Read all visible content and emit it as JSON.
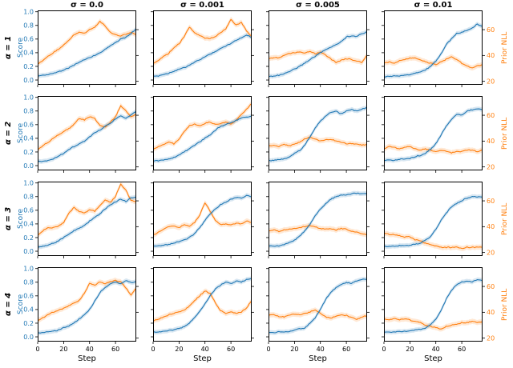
{
  "chart_data": {
    "type": "line",
    "layout": "4x4 grid of subplots; columns share sigma titles, rows share alpha labels; left blue axis = Score (labeled on first column), right orange axis = Prior NLL (labeled on last column); x tick labels and Step label only on bottom row",
    "columns": [
      {
        "title": "σ = 0.0"
      },
      {
        "title": "σ = 0.001"
      },
      {
        "title": "σ = 0.005"
      },
      {
        "title": "σ = 0.01"
      }
    ],
    "rows": [
      {
        "label": "α = 1"
      },
      {
        "label": "α = 2"
      },
      {
        "label": "α = 3"
      },
      {
        "label": "α = 4"
      }
    ],
    "x_axis": {
      "label": "Step",
      "ticks": [
        "0",
        "20",
        "40",
        "60"
      ],
      "lim": [
        0,
        76
      ]
    },
    "score_axis": {
      "label": "Score",
      "color": "#1f77b4",
      "ticks": [
        "0.0",
        "0.2",
        "0.4",
        "0.6",
        "0.8",
        "1.0"
      ],
      "lim": [
        -0.07,
        1.02
      ]
    },
    "nll_axis": {
      "label": "Prior NLL",
      "color": "#ff7f0e",
      "ticks": [
        "20",
        "40",
        "60"
      ],
      "lim": [
        17.3,
        74.9
      ]
    },
    "series_colors": {
      "score": "#1f77b4",
      "nll": "#ff7f0e"
    },
    "x": [
      0,
      4,
      8,
      12,
      16,
      20,
      24,
      28,
      32,
      36,
      40,
      44,
      48,
      52,
      56,
      60,
      64,
      68,
      72,
      76
    ],
    "subplots": [
      {
        "row": 0,
        "col": 0,
        "score": [
          0.06,
          0.07,
          0.08,
          0.1,
          0.12,
          0.15,
          0.18,
          0.22,
          0.26,
          0.3,
          0.33,
          0.36,
          0.4,
          0.45,
          0.5,
          0.55,
          0.6,
          0.63,
          0.68,
          0.75
        ],
        "nll": [
          33.4,
          36.3,
          39.2,
          42.1,
          44.9,
          48.0,
          52.0,
          56.0,
          58.0,
          57.0,
          60.0,
          62.0,
          66.3,
          63.0,
          58.0,
          56.0,
          55.0,
          56.5,
          58.0,
          56.0
        ]
      },
      {
        "row": 0,
        "col": 1,
        "score": [
          0.05,
          0.06,
          0.08,
          0.1,
          0.13,
          0.16,
          0.18,
          0.22,
          0.26,
          0.3,
          0.34,
          0.38,
          0.42,
          0.46,
          0.5,
          0.54,
          0.58,
          0.62,
          0.66,
          0.63
        ],
        "nll": [
          33.4,
          36.3,
          39.2,
          41.5,
          46.1,
          49.0,
          54.7,
          62.2,
          57.6,
          55.3,
          53.6,
          53.0,
          54.7,
          57.6,
          60.5,
          68.0,
          63.4,
          65.7,
          58.8,
          54.7
        ]
      },
      {
        "row": 0,
        "col": 2,
        "score": [
          0.05,
          0.06,
          0.07,
          0.09,
          0.12,
          0.16,
          0.2,
          0.25,
          0.3,
          0.35,
          0.4,
          0.44,
          0.48,
          0.52,
          0.56,
          0.63,
          0.65,
          0.64,
          0.68,
          0.71
        ],
        "nll": [
          37.5,
          38.6,
          38.0,
          40.3,
          41.5,
          42.1,
          42.6,
          42.1,
          43.2,
          41.5,
          42.6,
          40.3,
          37.5,
          34.6,
          36.3,
          37.5,
          36.9,
          35.7,
          34.6,
          40.3
        ]
      },
      {
        "row": 0,
        "col": 3,
        "score": [
          0.05,
          0.05,
          0.06,
          0.06,
          0.07,
          0.08,
          0.1,
          0.12,
          0.15,
          0.2,
          0.28,
          0.38,
          0.52,
          0.6,
          0.68,
          0.7,
          0.73,
          0.76,
          0.82,
          0.78
        ],
        "nll": [
          34,
          35,
          34,
          36,
          37,
          38,
          38,
          37,
          35,
          34,
          33,
          35,
          37,
          39,
          37,
          34,
          32,
          30,
          32,
          33
        ]
      },
      {
        "row": 1,
        "col": 0,
        "score": [
          0.06,
          0.06,
          0.08,
          0.1,
          0.14,
          0.18,
          0.24,
          0.28,
          0.32,
          0.36,
          0.42,
          0.48,
          0.52,
          0.58,
          0.62,
          0.68,
          0.73,
          0.7,
          0.74,
          0.8
        ],
        "nll": [
          33.4,
          36.3,
          39.2,
          42.1,
          44.9,
          47.3,
          49.6,
          53.0,
          57.6,
          56.4,
          58.8,
          57.6,
          51.9,
          50.7,
          54.7,
          58.8,
          67.4,
          63.4,
          58.8,
          60.5
        ]
      },
      {
        "row": 1,
        "col": 1,
        "score": [
          0.07,
          0.07,
          0.08,
          0.1,
          0.12,
          0.16,
          0.2,
          0.25,
          0.3,
          0.35,
          0.4,
          0.45,
          0.52,
          0.58,
          0.6,
          0.63,
          0.66,
          0.7,
          0.71,
          0.72
        ],
        "nll": [
          33.4,
          35.7,
          37.5,
          39.2,
          38.0,
          41.5,
          47.3,
          51.9,
          53.0,
          51.9,
          53.6,
          54.7,
          53.0,
          53.6,
          54.7,
          53.0,
          56.4,
          60.5,
          64.6,
          69.1
        ]
      },
      {
        "row": 1,
        "col": 2,
        "score": [
          0.07,
          0.08,
          0.09,
          0.1,
          0.13,
          0.18,
          0.22,
          0.3,
          0.42,
          0.55,
          0.65,
          0.72,
          0.78,
          0.8,
          0.76,
          0.8,
          0.82,
          0.8,
          0.83,
          0.85
        ],
        "nll": [
          36.3,
          36.9,
          35.7,
          37.5,
          36.3,
          38.0,
          39.2,
          41.5,
          43.2,
          41.5,
          40.3,
          40.9,
          41.5,
          40.3,
          39.2,
          38.0,
          38.0,
          37.5,
          36.9,
          37.5
        ]
      },
      {
        "row": 1,
        "col": 3,
        "score": [
          0.08,
          0.08,
          0.08,
          0.09,
          0.1,
          0.11,
          0.13,
          0.15,
          0.18,
          0.24,
          0.32,
          0.45,
          0.58,
          0.68,
          0.75,
          0.74,
          0.8,
          0.82,
          0.83,
          0.82
        ],
        "nll": [
          34,
          36,
          35,
          34,
          35,
          36,
          34,
          33,
          34,
          33,
          32,
          33,
          32,
          31,
          32,
          32,
          33,
          33,
          32,
          33
        ]
      },
      {
        "row": 2,
        "col": 0,
        "score": [
          0.06,
          0.07,
          0.09,
          0.12,
          0.15,
          0.2,
          0.25,
          0.3,
          0.34,
          0.38,
          0.44,
          0.5,
          0.55,
          0.62,
          0.68,
          0.72,
          0.76,
          0.73,
          0.78,
          0.8
        ],
        "nll": [
          33.4,
          36.9,
          39.2,
          39.2,
          40.3,
          43.2,
          50.7,
          54.7,
          51.9,
          50.7,
          53.0,
          51.9,
          56.4,
          60.5,
          58.8,
          63.4,
          73.2,
          68.0,
          60.5,
          59.4
        ]
      },
      {
        "row": 2,
        "col": 1,
        "score": [
          0.08,
          0.08,
          0.09,
          0.1,
          0.12,
          0.14,
          0.17,
          0.2,
          0.26,
          0.35,
          0.45,
          0.55,
          0.62,
          0.68,
          0.72,
          0.76,
          0.79,
          0.78,
          0.82,
          0.8
        ],
        "nll": [
          33.4,
          35.7,
          38.0,
          40.3,
          40.3,
          39.2,
          41.5,
          40.3,
          43.2,
          49.0,
          58.8,
          51.9,
          45.0,
          41.5,
          42.1,
          41.5,
          42.6,
          42.1,
          44.4,
          43.2
        ]
      },
      {
        "row": 2,
        "col": 2,
        "score": [
          0.07,
          0.08,
          0.08,
          0.1,
          0.13,
          0.16,
          0.22,
          0.3,
          0.4,
          0.52,
          0.62,
          0.7,
          0.76,
          0.8,
          0.82,
          0.83,
          0.84,
          0.85,
          0.84,
          0.85
        ],
        "nll": [
          36.9,
          37.5,
          36.3,
          37.5,
          38.0,
          38.6,
          39.2,
          40.3,
          40.9,
          39.7,
          38.6,
          38.0,
          38.6,
          37.5,
          38.6,
          38.0,
          36.3,
          35.7,
          34.6,
          33.4
        ]
      },
      {
        "row": 2,
        "col": 3,
        "score": [
          0.07,
          0.07,
          0.07,
          0.08,
          0.08,
          0.09,
          0.1,
          0.12,
          0.16,
          0.22,
          0.32,
          0.45,
          0.56,
          0.65,
          0.7,
          0.74,
          0.78,
          0.8,
          0.8,
          0.79
        ],
        "nll": [
          35,
          34,
          34,
          33,
          32,
          32,
          30,
          29,
          27,
          26,
          25,
          24,
          24,
          24,
          24,
          23,
          24,
          24,
          24,
          24
        ]
      },
      {
        "row": 3,
        "col": 0,
        "score": [
          0.06,
          0.06,
          0.07,
          0.08,
          0.1,
          0.13,
          0.16,
          0.2,
          0.26,
          0.32,
          0.4,
          0.52,
          0.65,
          0.72,
          0.78,
          0.8,
          0.78,
          0.82,
          0.8,
          0.81
        ],
        "nll": [
          33.4,
          35.7,
          38.0,
          40.3,
          41.5,
          43.2,
          44.9,
          47.3,
          49.0,
          54.7,
          62.2,
          61.1,
          63.4,
          62.2,
          63.4,
          64.6,
          63.4,
          58.8,
          53.0,
          58.8
        ]
      },
      {
        "row": 3,
        "col": 1,
        "score": [
          0.07,
          0.07,
          0.08,
          0.09,
          0.1,
          0.12,
          0.15,
          0.2,
          0.28,
          0.38,
          0.48,
          0.6,
          0.7,
          0.76,
          0.8,
          0.78,
          0.82,
          0.8,
          0.84,
          0.86
        ],
        "nll": [
          33.4,
          34.6,
          36.3,
          38.0,
          39.2,
          40.3,
          41.5,
          45.0,
          49.0,
          53.0,
          56.4,
          54.7,
          47.3,
          41.5,
          39.2,
          40.3,
          39.2,
          40.3,
          43.2,
          49.0
        ]
      },
      {
        "row": 3,
        "col": 2,
        "score": [
          0.06,
          0.06,
          0.07,
          0.07,
          0.08,
          0.1,
          0.12,
          0.13,
          0.2,
          0.28,
          0.4,
          0.55,
          0.65,
          0.72,
          0.76,
          0.8,
          0.78,
          0.82,
          0.84,
          0.85
        ],
        "nll": [
          37.5,
          38.0,
          36.9,
          36.3,
          38.0,
          38.6,
          38.0,
          39.2,
          40.3,
          41.5,
          39.2,
          36.3,
          35.7,
          36.9,
          38.0,
          37.5,
          36.3,
          34.6,
          36.3,
          37.5
        ]
      },
      {
        "row": 3,
        "col": 3,
        "score": [
          0.07,
          0.07,
          0.07,
          0.08,
          0.08,
          0.09,
          0.1,
          0.11,
          0.13,
          0.18,
          0.26,
          0.38,
          0.55,
          0.68,
          0.76,
          0.8,
          0.82,
          0.8,
          0.84,
          0.83
        ],
        "nll": [
          35,
          34,
          35,
          34,
          35,
          34,
          33,
          32,
          30,
          29,
          28,
          27,
          29,
          30,
          31,
          32,
          32,
          33,
          32,
          33
        ]
      }
    ]
  }
}
